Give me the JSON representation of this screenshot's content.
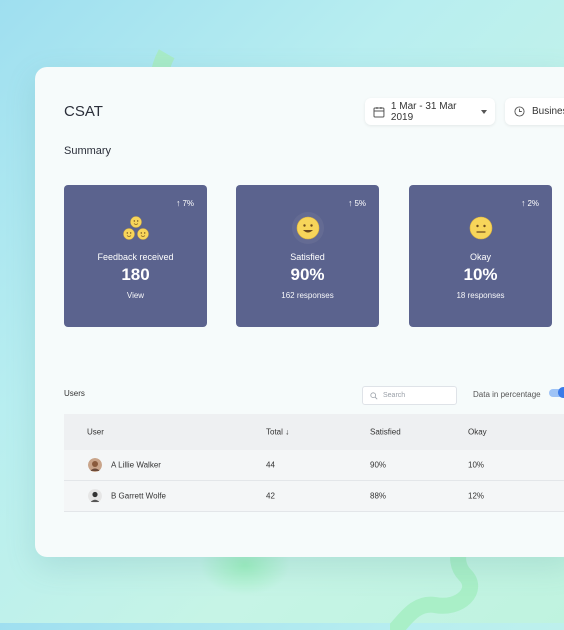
{
  "header": {
    "title": "CSAT",
    "date_range": "1 Mar - 31 Mar 2019",
    "business_filter": "Business"
  },
  "summary": {
    "label": "Summary",
    "cards": [
      {
        "label": "Feedback received",
        "value": "180",
        "sub": "View",
        "trend": "7%",
        "icon": "group-smiley-icon"
      },
      {
        "label": "Satisfied",
        "value": "90%",
        "sub": "162 responses",
        "trend": "5%",
        "icon": "happy-face-icon"
      },
      {
        "label": "Okay",
        "value": "10%",
        "sub": "18 responses",
        "trend": "2%",
        "icon": "neutral-face-icon"
      }
    ]
  },
  "users": {
    "label": "Users",
    "search_placeholder": "Search",
    "percentage_toggle_label": "Data in percentage",
    "percentage_toggle_on": true,
    "columns": {
      "user": "User",
      "total": "Total",
      "satisfied": "Satisfied",
      "okay": "Okay"
    },
    "rows": [
      {
        "name": "A Lillie Walker",
        "total": "44",
        "satisfied": "90%",
        "okay": "10%"
      },
      {
        "name": "B Garrett Wolfe",
        "total": "42",
        "satisfied": "88%",
        "okay": "12%"
      }
    ]
  },
  "colors": {
    "card": "#5b638e",
    "accent": "#3b7be8",
    "emoji": "#f7d55a"
  }
}
